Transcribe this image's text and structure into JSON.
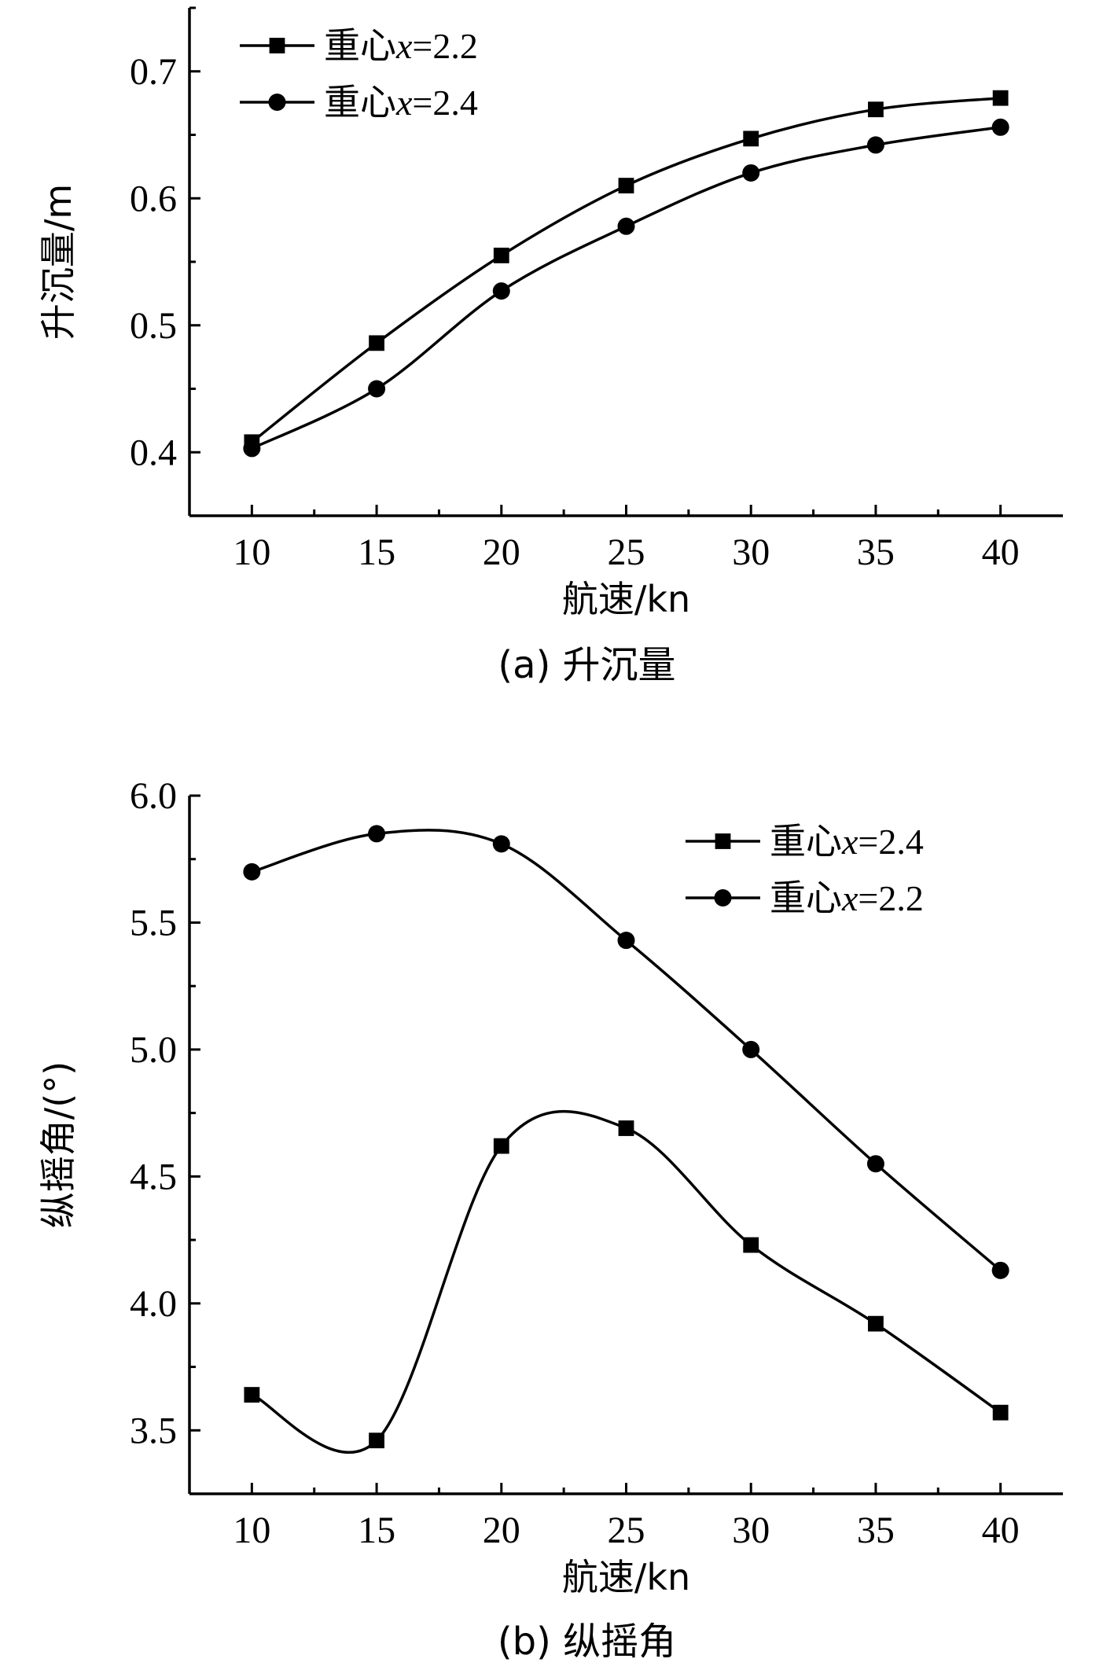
{
  "chart_data": [
    {
      "type": "line",
      "caption": "(a) 升沉量",
      "xlabel": "航速/kn",
      "ylabel": "升沉量/m",
      "x": [
        10,
        15,
        20,
        25,
        30,
        35,
        40
      ],
      "xlim": [
        7.5,
        42.5
      ],
      "ylim": [
        0.35,
        0.75
      ],
      "xticks": [
        10,
        15,
        20,
        25,
        30,
        35,
        40
      ],
      "yticks": [
        0.4,
        0.5,
        0.6,
        0.7
      ],
      "ytick_labels": [
        "0.4",
        "0.5",
        "0.6",
        "0.7"
      ],
      "legend_position": "top-left",
      "grid": false,
      "series": [
        {
          "name": "重心x=2.2",
          "legend_prefix": "重心",
          "legend_var": "x",
          "legend_suffix": "=2.2",
          "marker": "square",
          "values": [
            0.408,
            0.486,
            0.555,
            0.61,
            0.647,
            0.67,
            0.679
          ]
        },
        {
          "name": "重心x=2.4",
          "legend_prefix": "重心",
          "legend_var": "x",
          "legend_suffix": "=2.4",
          "marker": "circle",
          "values": [
            0.403,
            0.45,
            0.527,
            0.578,
            0.62,
            0.642,
            0.656
          ]
        }
      ]
    },
    {
      "type": "line",
      "caption": "(b) 纵摇角",
      "xlabel": "航速/kn",
      "ylabel": "纵摇角/(°)",
      "x": [
        10,
        15,
        20,
        25,
        30,
        35,
        40
      ],
      "xlim": [
        7.5,
        42.5
      ],
      "ylim": [
        3.25,
        6.0
      ],
      "xticks": [
        10,
        15,
        20,
        25,
        30,
        35,
        40
      ],
      "yticks": [
        3.5,
        4.0,
        4.5,
        5.0,
        5.5,
        6.0
      ],
      "ytick_labels": [
        "3.5",
        "4.0",
        "4.5",
        "5.0",
        "5.5",
        "6.0"
      ],
      "legend_position": "top-right",
      "grid": false,
      "series": [
        {
          "name": "重心x=2.4",
          "legend_prefix": "重心",
          "legend_var": "x",
          "legend_suffix": "=2.4",
          "marker": "square",
          "values": [
            3.64,
            3.46,
            4.62,
            4.69,
            4.23,
            3.92,
            3.57
          ]
        },
        {
          "name": "重心x=2.2",
          "legend_prefix": "重心",
          "legend_var": "x",
          "legend_suffix": "=2.2",
          "marker": "circle",
          "values": [
            5.7,
            5.85,
            5.81,
            5.43,
            5.0,
            4.55,
            4.13
          ]
        }
      ]
    }
  ]
}
